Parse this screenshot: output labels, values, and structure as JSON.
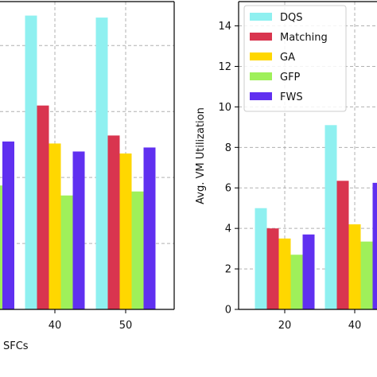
{
  "chart_data": [
    {
      "type": "bar",
      "x": [
        40,
        50
      ],
      "xticks": [
        "40",
        "50"
      ],
      "xlabel_fragment": "SFCs",
      "grid": true,
      "series": [
        {
          "name": "DQS",
          "color": "#8ff0f0",
          "values": [
            14.7,
            14.6
          ]
        },
        {
          "name": "Matching",
          "color": "#d9354f",
          "values": [
            10.2,
            8.7
          ]
        },
        {
          "name": "GA",
          "color": "#ffd700",
          "values": [
            8.3,
            7.8
          ]
        },
        {
          "name": "GFP",
          "color": "#9ff05a",
          "values": [
            5.7,
            5.9
          ]
        },
        {
          "name": "FWS",
          "color": "#6030f0",
          "values": [
            7.9,
            8.1
          ]
        }
      ],
      "partial_left_bars": [
        {
          "color": "#9ff05a",
          "value": 6.2
        },
        {
          "color": "#6030f0",
          "value": 8.4
        }
      ]
    },
    {
      "type": "bar",
      "x": [
        20,
        40
      ],
      "xticks": [
        "20",
        "40"
      ],
      "yticks": [
        "0",
        "2",
        "4",
        "6",
        "8",
        "10",
        "12",
        "14"
      ],
      "ylim": [
        0,
        15.2
      ],
      "ylabel": "Avg. VM Utilization",
      "grid": true,
      "legend_position": "top-left",
      "series": [
        {
          "name": "DQS",
          "color": "#8ff0f0",
          "values": [
            5.0,
            9.1
          ]
        },
        {
          "name": "Matching",
          "color": "#d9354f",
          "values": [
            4.0,
            6.35
          ]
        },
        {
          "name": "GA",
          "color": "#ffd700",
          "values": [
            3.5,
            4.2
          ]
        },
        {
          "name": "GFP",
          "color": "#9ff05a",
          "values": [
            2.7,
            3.35
          ]
        },
        {
          "name": "FWS",
          "color": "#6030f0",
          "values": [
            3.7,
            6.25
          ]
        }
      ]
    }
  ]
}
